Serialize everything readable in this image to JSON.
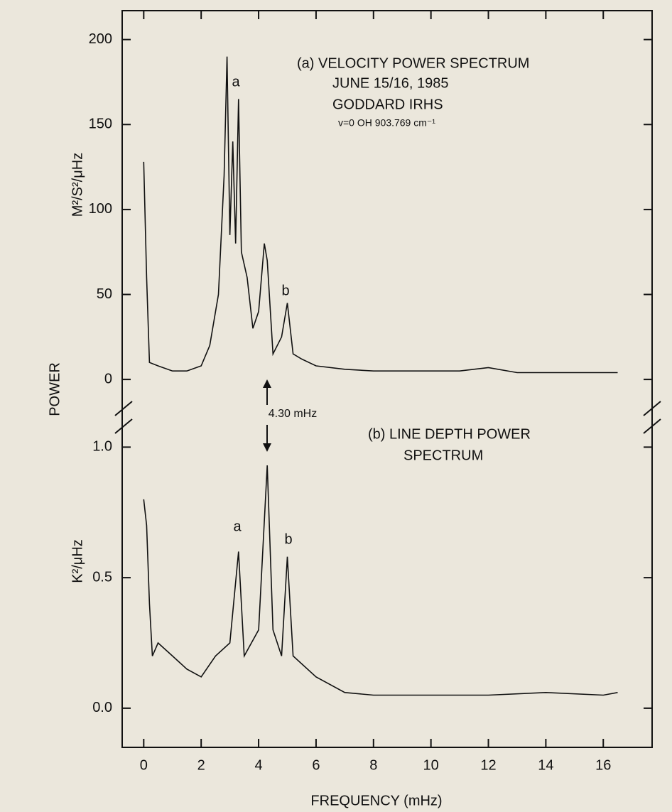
{
  "chart_data": [
    {
      "type": "line",
      "color": "#111111",
      "ylabel": "M²/S²/μHz",
      "group_ylabel": "POWER",
      "annotations": [
        "(a) VELOCITY POWER SPECTRUM",
        "JUNE 15/16, 1985",
        "GODDARD IRHS",
        "v=0 OH 903.769 cm⁻¹",
        "a",
        "b",
        "4.30 mHz"
      ],
      "ylim": [
        -15,
        217
      ],
      "yticks": [
        0,
        50,
        100,
        150,
        200
      ],
      "x": [
        0,
        0.1,
        0.2,
        0.5,
        1,
        1.5,
        2,
        2.3,
        2.6,
        2.8,
        2.9,
        3.0,
        3.1,
        3.2,
        3.3,
        3.4,
        3.6,
        3.8,
        4.0,
        4.2,
        4.3,
        4.5,
        4.8,
        5.0,
        5.2,
        5.5,
        6,
        7,
        8,
        9,
        10,
        11,
        12,
        13,
        14,
        15,
        16,
        16.5
      ],
      "values": [
        128,
        60,
        10,
        8,
        5,
        5,
        8,
        20,
        50,
        120,
        190,
        85,
        140,
        80,
        165,
        75,
        60,
        30,
        40,
        80,
        70,
        15,
        25,
        45,
        15,
        12,
        8,
        6,
        5,
        5,
        5,
        5,
        7,
        4,
        4,
        4,
        4,
        4
      ]
    },
    {
      "type": "line",
      "color": "#111111",
      "ylabel": "K²/μHz",
      "xlabel": "FREQUENCY (mHz)",
      "annotations": [
        "(b) LINE DEPTH POWER",
        "SPECTRUM",
        "a",
        "b"
      ],
      "ylim": [
        -0.15,
        1.08
      ],
      "yticks": [
        {
          "value": 0,
          "label": "0.0"
        },
        0.5,
        {
          "value": 1,
          "label": "1.0"
        }
      ],
      "xlim": [
        -0.75,
        17.7
      ],
      "xticks": [
        0,
        2,
        4,
        6,
        8,
        10,
        12,
        14,
        16
      ],
      "x": [
        0,
        0.1,
        0.2,
        0.3,
        0.5,
        1,
        1.5,
        2,
        2.5,
        3,
        3.3,
        3.5,
        4,
        4.3,
        4.5,
        4.8,
        5,
        5.2,
        6,
        7,
        8,
        10,
        12,
        14,
        16,
        16.5
      ],
      "values": [
        0.8,
        0.7,
        0.4,
        0.2,
        0.25,
        0.2,
        0.15,
        0.12,
        0.2,
        0.25,
        0.6,
        0.2,
        0.3,
        0.93,
        0.3,
        0.2,
        0.58,
        0.2,
        0.12,
        0.06,
        0.05,
        0.05,
        0.05,
        0.06,
        0.05,
        0.06
      ]
    }
  ]
}
